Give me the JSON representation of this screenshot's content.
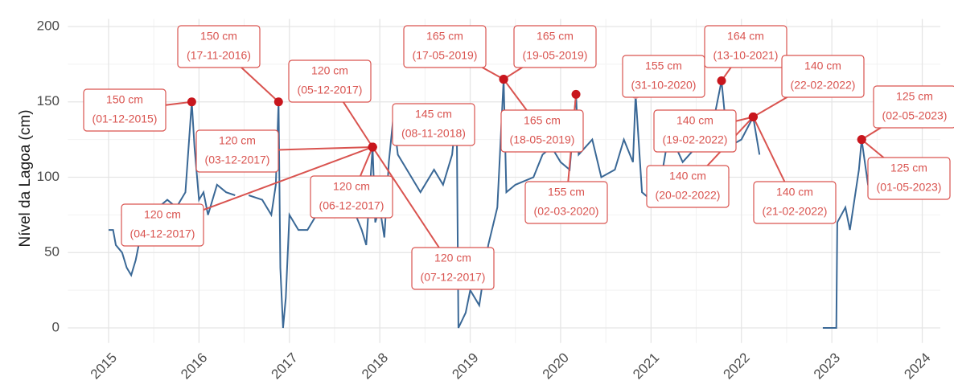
{
  "chart_data": {
    "type": "line",
    "ylabel": "Nível da Lagoa (cm)",
    "color": "#3a6896",
    "grid": true,
    "xlim": [
      2014.55,
      2024.2
    ],
    "xticks": [
      2015,
      2016,
      2017,
      2018,
      2019,
      2020,
      2021,
      2022,
      2023,
      2024
    ],
    "ylim": [
      -10,
      205
    ],
    "yticks": [
      0,
      50,
      100,
      150,
      200
    ],
    "x": [
      2015.0,
      2015.05,
      2015.08,
      2015.15,
      2015.2,
      2015.25,
      2015.3,
      2015.35,
      2015.45,
      2015.55,
      2015.65,
      2015.75,
      2015.85,
      2015.92,
      2015.95,
      2016.0,
      2016.05,
      2016.1,
      2016.2,
      2016.3,
      2016.4,
      2016.47,
      2016.55,
      2016.7,
      2016.8,
      2016.85,
      2016.88,
      2016.9,
      2016.93,
      2016.96,
      2017.0,
      2017.1,
      2017.2,
      2017.35,
      2017.5,
      2017.6,
      2017.7,
      2017.8,
      2017.85,
      2017.92,
      2017.95,
      2018.0,
      2018.05,
      2018.1,
      2018.15,
      2018.2,
      2018.35,
      2018.45,
      2018.6,
      2018.7,
      2018.8,
      2018.85,
      2018.87,
      2018.95,
      2019.0,
      2019.1,
      2019.2,
      2019.3,
      2019.37,
      2019.4,
      2019.5,
      2019.7,
      2019.8,
      2019.9,
      2020.0,
      2020.1,
      2020.17,
      2020.2,
      2020.35,
      2020.45,
      2020.6,
      2020.7,
      2020.8,
      2020.83,
      2020.9,
      2021.0,
      2021.1,
      2021.2,
      2021.35,
      2021.5,
      2021.6,
      2021.7,
      2021.78,
      2021.85,
      2022.0,
      2022.13,
      2022.2,
      2022.5,
      2022.9,
      2023.05,
      2023.06,
      2023.15,
      2023.2,
      2023.3,
      2023.33,
      2023.4,
      2023.5,
      2023.6,
      2023.7
    ],
    "values": [
      65,
      65,
      55,
      50,
      40,
      35,
      45,
      60,
      70,
      80,
      85,
      80,
      90,
      150,
      120,
      85,
      90,
      75,
      95,
      90,
      88,
      null,
      88,
      85,
      75,
      95,
      150,
      40,
      0,
      20,
      75,
      65,
      65,
      80,
      80,
      75,
      80,
      65,
      55,
      120,
      70,
      80,
      60,
      110,
      140,
      115,
      100,
      90,
      105,
      95,
      115,
      145,
      0,
      10,
      25,
      15,
      55,
      80,
      165,
      90,
      95,
      100,
      115,
      120,
      110,
      105,
      155,
      115,
      125,
      100,
      105,
      125,
      110,
      155,
      90,
      85,
      95,
      130,
      110,
      120,
      120,
      140,
      164,
      120,
      125,
      140,
      115,
      null,
      0,
      0,
      70,
      80,
      65,
      105,
      125,
      95,
      90,
      100,
      105
    ],
    "annotations": [
      {
        "label": "150 cm",
        "date": "(01-12-2015)",
        "x": 2015.92,
        "y": 150
      },
      {
        "label": "150 cm",
        "date": "(17-11-2016)",
        "x": 2016.88,
        "y": 150
      },
      {
        "label": "120 cm",
        "date": "(05-12-2017)",
        "x": 2017.92,
        "y": 120
      },
      {
        "label": "120 cm",
        "date": "(03-12-2017)",
        "x": 2017.92,
        "y": 120
      },
      {
        "label": "120 cm",
        "date": "(04-12-2017)",
        "x": 2017.92,
        "y": 120
      },
      {
        "label": "120 cm",
        "date": "(06-12-2017)",
        "x": 2017.92,
        "y": 120
      },
      {
        "label": "120 cm",
        "date": "(07-12-2017)",
        "x": 2017.92,
        "y": 120
      },
      {
        "label": "145 cm",
        "date": "(08-11-2018)",
        "x": 2018.85,
        "y": 145
      },
      {
        "label": "165 cm",
        "date": "(17-05-2019)",
        "x": 2019.37,
        "y": 165
      },
      {
        "label": "165 cm",
        "date": "(19-05-2019)",
        "x": 2019.37,
        "y": 165
      },
      {
        "label": "165 cm",
        "date": "(18-05-2019)",
        "x": 2019.37,
        "y": 165
      },
      {
        "label": "155 cm",
        "date": "(02-03-2020)",
        "x": 2020.17,
        "y": 155
      },
      {
        "label": "155 cm",
        "date": "(31-10-2020)",
        "x": 2020.83,
        "y": 155
      },
      {
        "label": "164 cm",
        "date": "(13-10-2021)",
        "x": 2021.78,
        "y": 164
      },
      {
        "label": "140 cm",
        "date": "(19-02-2022)",
        "x": 2022.13,
        "y": 140
      },
      {
        "label": "140 cm",
        "date": "(20-02-2022)",
        "x": 2022.13,
        "y": 140
      },
      {
        "label": "140 cm",
        "date": "(21-02-2022)",
        "x": 2022.13,
        "y": 140
      },
      {
        "label": "140 cm",
        "date": "(22-02-2022)",
        "x": 2022.13,
        "y": 140
      },
      {
        "label": "125 cm",
        "date": "(02-05-2023)",
        "x": 2023.33,
        "y": 125
      },
      {
        "label": "125 cm",
        "date": "(01-05-2023)",
        "x": 2023.33,
        "y": 125
      }
    ]
  }
}
